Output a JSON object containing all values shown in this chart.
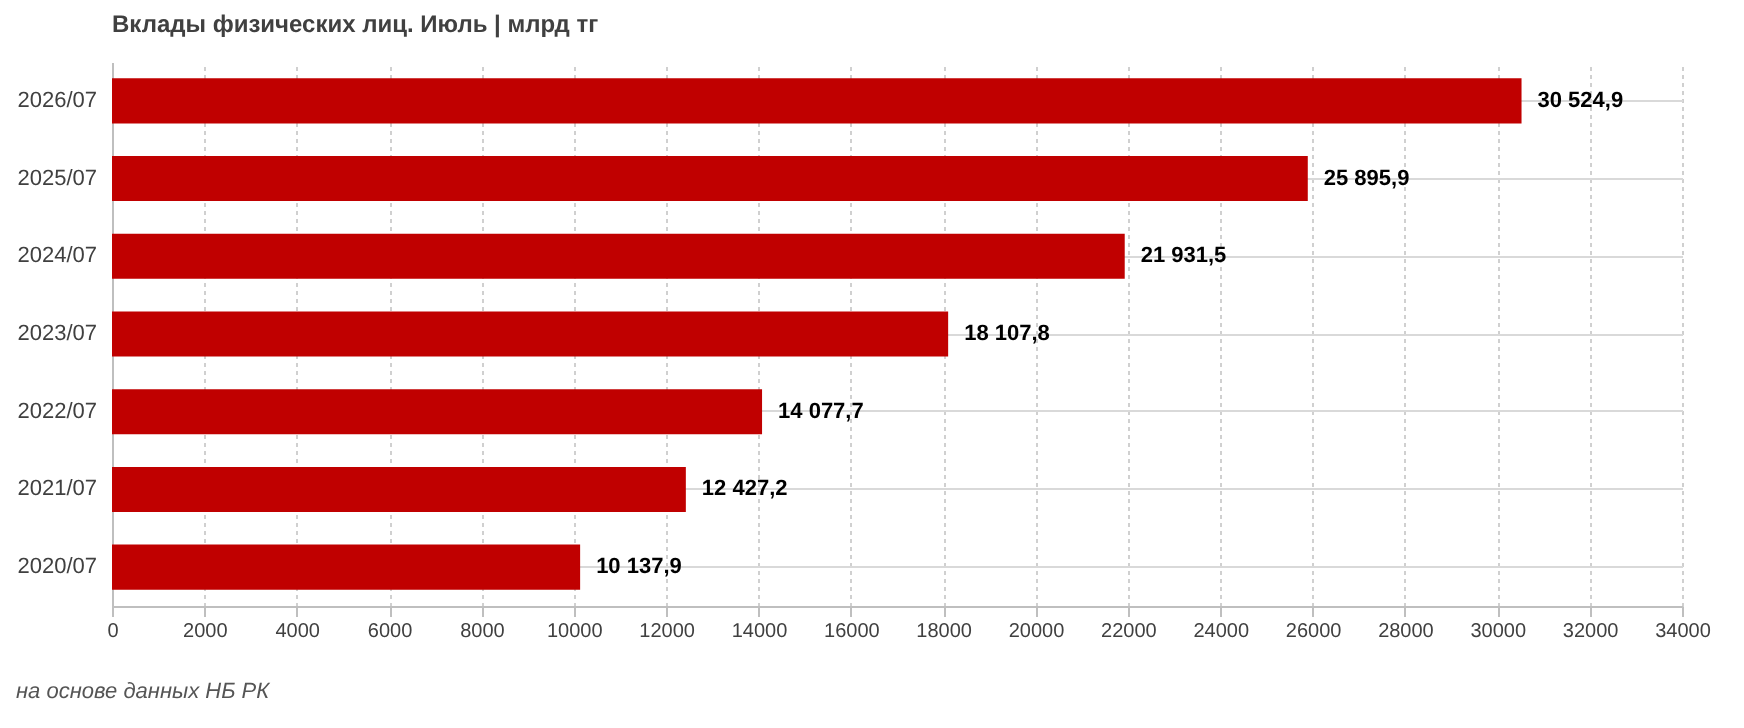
{
  "chart_data": {
    "type": "bar",
    "orientation": "horizontal",
    "title": "Вклады физических лиц. Июль | млрд тг",
    "categories": [
      "2026/07",
      "2025/07",
      "2024/07",
      "2023/07",
      "2022/07",
      "2021/07",
      "2020/07"
    ],
    "values": [
      30524.9,
      25895.9,
      21931.5,
      18107.8,
      14077.7,
      12427.2,
      10137.9
    ],
    "value_labels": [
      "30 524,9",
      "25 895,9",
      "21 931,5",
      "18 107,8",
      "14 077,7",
      "12 427,2",
      "10 137,9"
    ],
    "color": "#c00000",
    "xlim": [
      0,
      34000
    ],
    "xticks": [
      0,
      2000,
      4000,
      6000,
      8000,
      10000,
      12000,
      14000,
      16000,
      18000,
      20000,
      22000,
      24000,
      26000,
      28000,
      30000,
      32000,
      34000
    ],
    "grid": "x",
    "annotations": [
      "на основе данных НБ РК"
    ]
  }
}
